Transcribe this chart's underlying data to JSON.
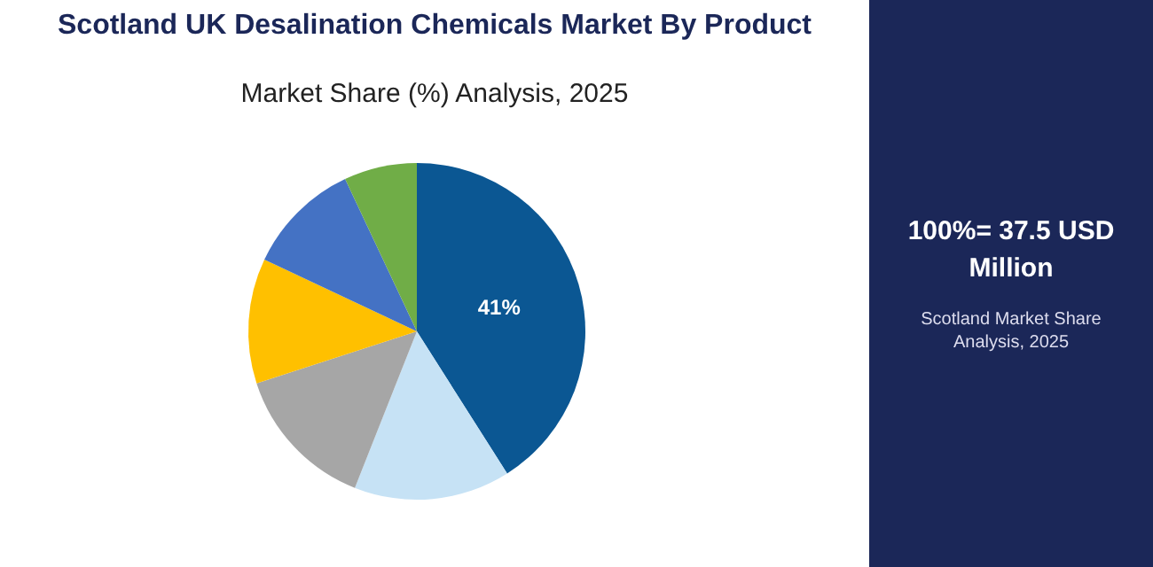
{
  "chart_data": {
    "type": "pie",
    "title": "Scotland UK Desalination Chemicals Market By Product",
    "subtitle": "Market Share (%) Analysis, 2025",
    "categories": [
      null,
      null,
      null,
      null,
      null,
      null
    ],
    "values": [
      41,
      15,
      14,
      12,
      11,
      7
    ],
    "colors": [
      "#0b5793",
      "#c6e2f5",
      "#a6a6a6",
      "#ffc000",
      "#4472c4",
      "#70ad47"
    ],
    "value_labels": [
      "41%",
      null,
      null,
      null,
      null,
      null
    ],
    "annotations": [
      "100%= 37.5 USD Million",
      "Scotland Market Share Analysis, 2025"
    ]
  }
}
